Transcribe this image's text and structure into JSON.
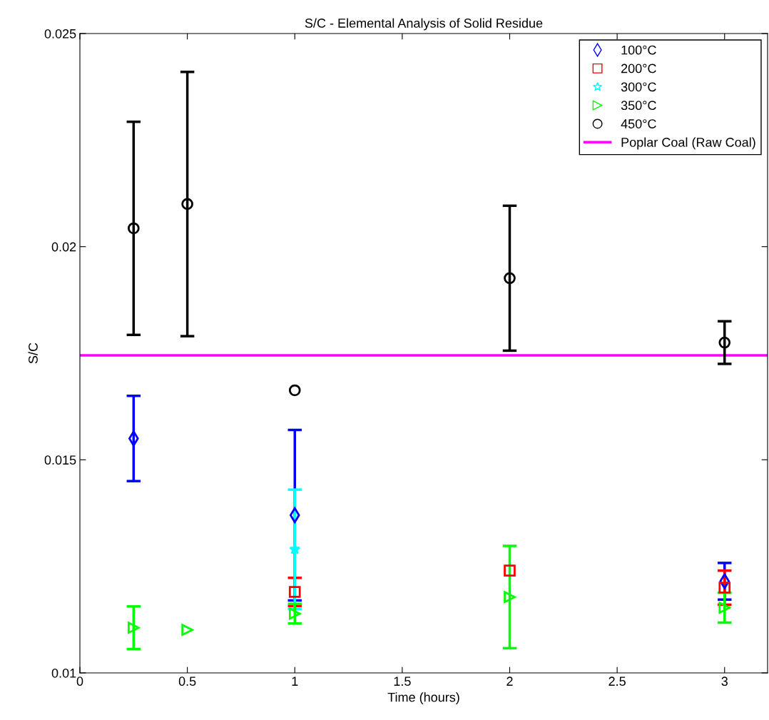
{
  "chart_data": {
    "type": "scatter",
    "title": "S/C - Elemental Analysis of Solid Residue",
    "xlabel": "Time (hours)",
    "ylabel": "S/C",
    "xlim": [
      0,
      3.2
    ],
    "xticks": [
      0,
      0.5,
      1,
      1.5,
      2,
      2.5,
      3
    ],
    "ylim": [
      0.01,
      0.025
    ],
    "yticks": [
      0.01,
      0.015,
      0.02,
      0.025
    ],
    "grid": false,
    "legend": "top right",
    "series": [
      {
        "name": "100°C",
        "color": "#0000ff",
        "marker": "diamond",
        "x": [
          0.25,
          1,
          3
        ],
        "values": [
          0.0155,
          0.0137,
          0.01215
        ],
        "errors": [
          0.001,
          0.002,
          0.00043
        ]
      },
      {
        "name": "200°C",
        "color": "#ff0000",
        "marker": "square",
        "x": [
          1,
          2,
          3
        ],
        "values": [
          0.0119,
          0.0124,
          0.012
        ],
        "errors": [
          0.00033,
          null,
          0.0004
        ]
      },
      {
        "name": "300°C",
        "color": "#00ffff",
        "marker": "star",
        "x": [
          1
        ],
        "values": [
          0.0129
        ],
        "errors": [
          0.0014
        ]
      },
      {
        "name": "350°C",
        "color": "#00ff00",
        "marker": "triangle",
        "x": [
          0.25,
          0.5,
          1,
          2,
          3
        ],
        "values": [
          0.01106,
          0.01101,
          0.01139,
          0.01178,
          0.01153
        ],
        "errors": [
          0.0005,
          null,
          0.00023,
          0.0012,
          0.00035
        ]
      },
      {
        "name": "450°C",
        "color": "#000000",
        "marker": "circle",
        "x": [
          0.25,
          0.5,
          1,
          2,
          3
        ],
        "values": [
          0.02043,
          0.021,
          0.01663,
          0.01926,
          0.01775
        ],
        "errors": [
          0.0025,
          0.0031,
          null,
          0.0017,
          0.0005
        ]
      }
    ],
    "ref_lines": [
      {
        "axis": "y",
        "value": 0.01745,
        "label": "Poplar Coal (Raw Coal)",
        "color": "#ff00ff",
        "line_style": "solid"
      }
    ]
  }
}
